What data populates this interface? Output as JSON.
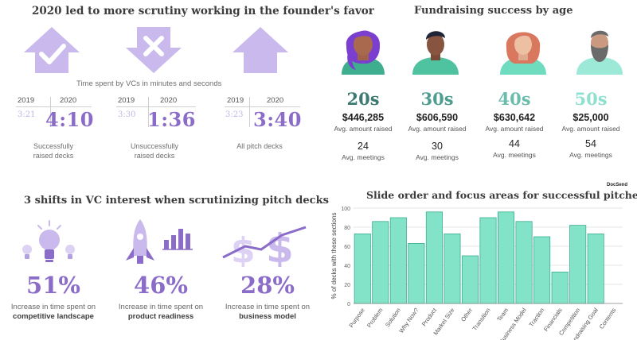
{
  "colors": {
    "purple": "#8b6cc8",
    "purple_light": "#c2b4e4",
    "teal_bar": "#82e3c8",
    "teal_edge": "#3fae8f",
    "decade_20s": "#3c7a72",
    "decade_30s": "#4f9c90",
    "decade_40s": "#6cbcae",
    "decade_50s": "#8fe0d0"
  },
  "scrutiny": {
    "title": "2020 led to more scrutiny working in the founder's favor",
    "subtitle": "Time spent by VCs in minutes and seconds",
    "groups": [
      {
        "arrow": "check-up-arrow-icon",
        "year_prev": "2019",
        "year_curr": "2020",
        "time_prev": "3:21",
        "time_curr": "4:10",
        "label_line1": "Successfully",
        "label_line2": "raised decks"
      },
      {
        "arrow": "x-down-arrow-icon",
        "year_prev": "2019",
        "year_curr": "2020",
        "time_prev": "3:30",
        "time_curr": "1:36",
        "label_line1": "Unsuccessfully",
        "label_line2": "raised decks"
      },
      {
        "arrow": "up-arrow-icon",
        "year_prev": "2019",
        "year_curr": "2020",
        "time_prev": "3:23",
        "time_curr": "3:40",
        "label_line1": "All pitch decks",
        "label_line2": ""
      }
    ]
  },
  "fundraising": {
    "title": "Fundraising success by age",
    "ages": [
      {
        "decade": "20s",
        "amount": "$446,285",
        "amount_label": "Avg. amount raised",
        "meetings": "24",
        "meetings_label": "Avg. meetings"
      },
      {
        "decade": "30s",
        "amount": "$606,590",
        "amount_label": "Avg. amount raised",
        "meetings": "30",
        "meetings_label": "Avg. meetings"
      },
      {
        "decade": "40s",
        "amount": "$630,642",
        "amount_label": "Avg. amount raised",
        "meetings": "44",
        "meetings_label": "Avg. meetings"
      },
      {
        "decade": "50s",
        "amount": "$25,000",
        "amount_label": "Avg. amount raised",
        "meetings": "54",
        "meetings_label": "Avg. meetings"
      }
    ]
  },
  "shifts": {
    "title": "3 shifts in VC interest when scrutinizing pitch decks",
    "items": [
      {
        "icon": "lightbulb-icon",
        "percent": "51%",
        "desc": "Increase in time spent on",
        "topic": "competitive landscape"
      },
      {
        "icon": "rocket-chart-icon",
        "percent": "46%",
        "desc": "Increase in time spent on",
        "topic": "product readiness"
      },
      {
        "icon": "dollar-trend-icon",
        "percent": "28%",
        "desc": "Increase in time spent on",
        "topic": "business model"
      }
    ]
  },
  "chart_data": {
    "type": "bar",
    "title": "Slide order and focus areas for successful pitches...",
    "brand": "DocSend",
    "ylabel": "% of decks with these sections",
    "xlabel": "",
    "ylim": [
      0,
      100
    ],
    "yticks": [
      0,
      20,
      40,
      60,
      80,
      100
    ],
    "grid": true,
    "categories": [
      "Purpose",
      "Problem",
      "Solution",
      "Why Now?",
      "Product",
      "Market Size",
      "Other",
      "Transition",
      "Team",
      "Business Model",
      "Traction",
      "Financials",
      "Competition",
      "Fundraising Goal",
      "Contents"
    ],
    "values": [
      73,
      86,
      90,
      63,
      96,
      73,
      50,
      90,
      96,
      86,
      70,
      33,
      82,
      73,
      0
    ]
  }
}
